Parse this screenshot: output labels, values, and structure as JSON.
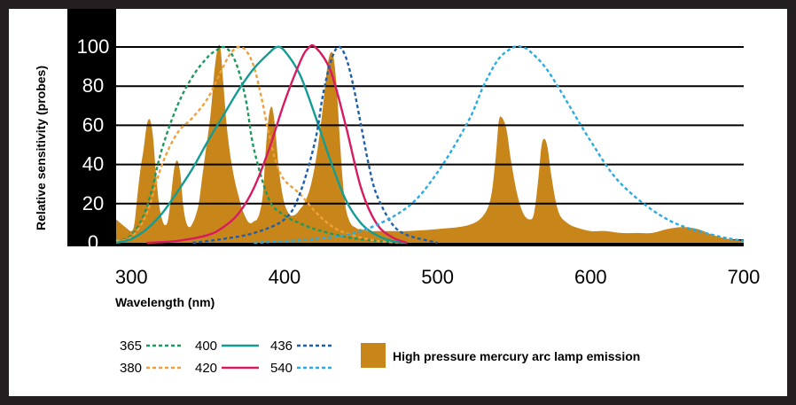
{
  "chart_data": {
    "type": "line",
    "xlabel": "Wavelength (nm)",
    "ylabel": "Relative sensitivity (probes)",
    "xlim": [
      290,
      700
    ],
    "ylim": [
      0,
      100
    ],
    "x_ticks": [
      "300",
      "400",
      "500",
      "600",
      "700"
    ],
    "y_ticks": [
      "0",
      "20",
      "40",
      "60",
      "80",
      "100"
    ],
    "grid": "horizontal",
    "legend_position": "bottom-left",
    "series": [
      {
        "name": "365",
        "color": "#1a9a5c",
        "style": "dashed",
        "x": [
          290,
          300,
          310,
          320,
          330,
          340,
          350,
          355,
          360,
          365,
          370,
          375,
          380,
          390,
          400,
          410,
          420,
          440,
          460,
          480
        ],
        "y": [
          1,
          4,
          18,
          48,
          70,
          85,
          95,
          98,
          100,
          97,
          88,
          72,
          48,
          22,
          14,
          10,
          7,
          3,
          1,
          0
        ]
      },
      {
        "name": "380",
        "color": "#f0a038",
        "style": "dashed",
        "x": [
          290,
          300,
          310,
          320,
          330,
          340,
          350,
          360,
          365,
          370,
          375,
          380,
          385,
          390,
          395,
          400,
          410,
          420,
          430,
          440,
          460,
          480
        ],
        "y": [
          1,
          3,
          15,
          40,
          56,
          64,
          74,
          90,
          97,
          100,
          98,
          90,
          74,
          55,
          40,
          32,
          25,
          16,
          9,
          5,
          1,
          0
        ]
      },
      {
        "name": "400",
        "color": "#139c94",
        "style": "solid",
        "x": [
          290,
          300,
          310,
          320,
          330,
          340,
          350,
          360,
          370,
          380,
          390,
          395,
          400,
          410,
          420,
          430,
          440,
          450,
          460,
          470,
          480
        ],
        "y": [
          0,
          2,
          7,
          15,
          26,
          38,
          52,
          65,
          78,
          89,
          97,
          100,
          98,
          86,
          65,
          42,
          22,
          10,
          4,
          1,
          0
        ]
      },
      {
        "name": "420",
        "color": "#d81b60",
        "style": "solid",
        "x": [
          310,
          330,
          350,
          360,
          370,
          380,
          390,
          400,
          410,
          415,
          420,
          430,
          440,
          450,
          460,
          470,
          480
        ],
        "y": [
          0,
          1,
          4,
          8,
          15,
          28,
          48,
          72,
          92,
          99,
          100,
          88,
          60,
          28,
          10,
          3,
          0
        ]
      },
      {
        "name": "436",
        "color": "#1e5fa8",
        "style": "dashed",
        "x": [
          340,
          360,
          380,
          400,
          410,
          420,
          425,
          430,
          435,
          440,
          445,
          450,
          455,
          460,
          470,
          480,
          500
        ],
        "y": [
          0,
          2,
          5,
          12,
          25,
          52,
          75,
          92,
          100,
          95,
          80,
          60,
          40,
          25,
          10,
          4,
          0
        ]
      },
      {
        "name": "540",
        "color": "#29abe2",
        "style": "dashed",
        "x": [
          380,
          420,
          450,
          480,
          500,
          520,
          530,
          540,
          550,
          555,
          560,
          570,
          580,
          600,
          620,
          650,
          680,
          700
        ],
        "y": [
          0,
          2,
          6,
          18,
          36,
          62,
          80,
          94,
          100,
          100,
          98,
          90,
          78,
          52,
          30,
          12,
          4,
          1
        ]
      }
    ],
    "emission": {
      "name": "High pressure mercury arc lamp emission",
      "color": "#c8861a",
      "x": [
        290,
        296,
        300,
        302,
        304,
        306,
        308,
        310,
        312,
        314,
        316,
        318,
        320,
        322,
        324,
        326,
        328,
        330,
        332,
        334,
        336,
        338,
        340,
        342,
        344,
        346,
        348,
        350,
        352,
        354,
        356,
        358,
        360,
        362,
        364,
        366,
        368,
        370,
        372,
        374,
        376,
        378,
        380,
        382,
        384,
        386,
        388,
        390,
        392,
        394,
        396,
        398,
        400,
        402,
        404,
        406,
        408,
        410,
        412,
        414,
        416,
        418,
        420,
        422,
        424,
        426,
        428,
        430,
        432,
        434,
        436,
        438,
        440,
        442,
        444,
        446,
        448,
        450,
        455,
        460,
        470,
        480,
        500,
        520,
        530,
        535,
        538,
        540,
        542,
        545,
        548,
        552,
        556,
        560,
        563,
        566,
        568,
        570,
        572,
        574,
        577,
        580,
        585,
        590,
        600,
        610,
        620,
        630,
        640,
        650,
        660,
        670,
        680,
        690,
        700
      ],
      "y": [
        12,
        8,
        6,
        10,
        25,
        38,
        48,
        60,
        63,
        55,
        36,
        20,
        12,
        9,
        12,
        25,
        38,
        42,
        35,
        18,
        10,
        8,
        10,
        14,
        20,
        32,
        44,
        55,
        68,
        86,
        98,
        100,
        82,
        62,
        48,
        38,
        30,
        24,
        18,
        14,
        11,
        10,
        11,
        12,
        16,
        26,
        50,
        66,
        69,
        58,
        40,
        28,
        20,
        16,
        14,
        14,
        15,
        17,
        19,
        22,
        26,
        32,
        40,
        50,
        62,
        76,
        90,
        97,
        95,
        80,
        55,
        32,
        18,
        12,
        9,
        8,
        7,
        7,
        6,
        6,
        6,
        6,
        7,
        9,
        14,
        24,
        44,
        62,
        64,
        58,
        42,
        25,
        15,
        12,
        15,
        34,
        50,
        53,
        48,
        36,
        22,
        14,
        10,
        8,
        6,
        6,
        5,
        5,
        5,
        7,
        8,
        7,
        4,
        2,
        1
      ]
    }
  },
  "legend": {
    "items": [
      {
        "label": "365",
        "color": "#1a9a5c",
        "style": "dashed"
      },
      {
        "label": "400",
        "color": "#139c94",
        "style": "solid"
      },
      {
        "label": "436",
        "color": "#1e5fa8",
        "style": "dashed"
      },
      {
        "label": "380",
        "color": "#f0a038",
        "style": "dashed"
      },
      {
        "label": "420",
        "color": "#d81b60",
        "style": "solid"
      },
      {
        "label": "540",
        "color": "#29abe2",
        "style": "dashed"
      }
    ],
    "emission_label": "High pressure mercury arc lamp emission"
  },
  "colors": {
    "frame": "#231f20",
    "axis_band": "#000000",
    "grid": "#000000",
    "emission": "#c8861a"
  }
}
